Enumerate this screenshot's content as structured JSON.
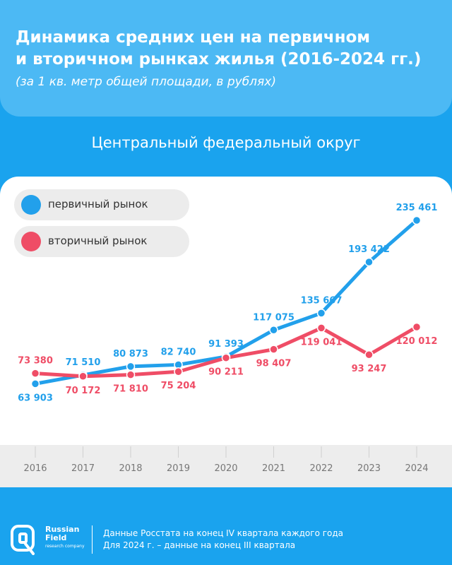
{
  "header": {
    "title_line1": "Динамика средних цен на первичном",
    "title_line2": "и вторичном рынках жилья (2016-2024 гг.)",
    "subtitle": "(за 1 кв. метр общей площади, в рублях)"
  },
  "region": "Центральный федеральный округ",
  "colors": {
    "primary": "#22a0eb",
    "secondary": "#ef4d66",
    "background": "#1aa3ee"
  },
  "chart_data": {
    "type": "line",
    "x": [
      "2016",
      "2017",
      "2018",
      "2019",
      "2020",
      "2021",
      "2022",
      "2023",
      "2024"
    ],
    "series": [
      {
        "name": "первичный рынок",
        "values": [
          63903,
          71510,
          80873,
          82740,
          91393,
          117075,
          135667,
          193422,
          235461
        ],
        "labels": [
          "63 903",
          "71 510",
          "80 873",
          "82 740",
          "91 393",
          "117 075",
          "135 667",
          "193 422",
          "235 461"
        ]
      },
      {
        "name": "вторичный рынок",
        "values": [
          73380,
          70172,
          71810,
          75204,
          90211,
          98407,
          119041,
          93247,
          120012
        ],
        "labels": [
          "73 380",
          "70 172",
          "71 810",
          "75 204",
          "90 211",
          "98 407",
          "119 041",
          "93 247",
          "120 012"
        ]
      }
    ],
    "legend": "top-left",
    "grid": false
  },
  "footer": {
    "brand_line1": "Russian",
    "brand_line2": "Field",
    "brand_line3": "research company",
    "source_line1": "Данные Росстата на конец IV квартала каждого года",
    "source_line2": "Для 2024 г. – данные на конец III квартала"
  }
}
